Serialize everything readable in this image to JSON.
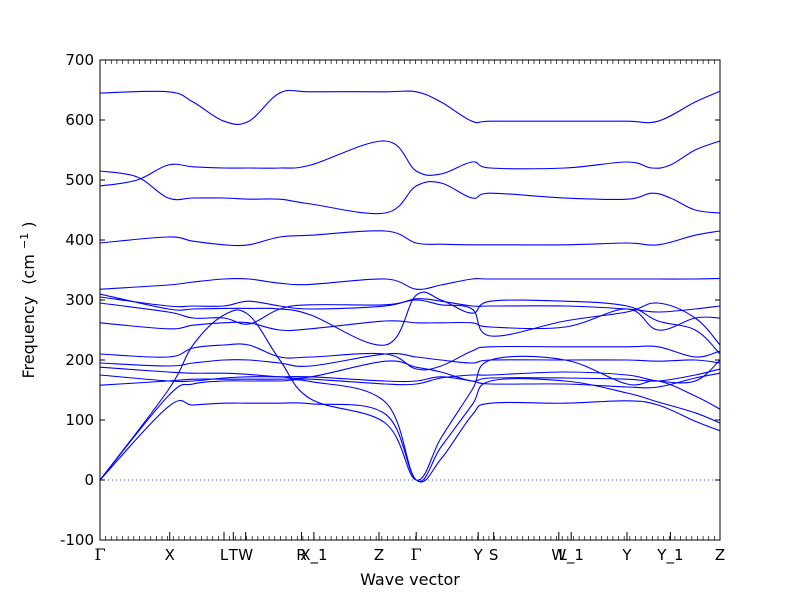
{
  "chart_data": {
    "type": "line",
    "title": "",
    "xlabel": "Wave vector",
    "ylabel": "Frequency",
    "ylabel_unit": "(cm",
    "ylabel_unit_sup": "−1",
    "ylabel_unit_close": ")",
    "ylim": [
      -100,
      700
    ],
    "y_ticks": [
      -100,
      0,
      100,
      200,
      300,
      400,
      500,
      600,
      700
    ],
    "grid": false,
    "line_color": "#0000ff",
    "zero_line_color": "#4444ff",
    "x_high_symmetry": [
      {
        "label": "Γ",
        "x": 0.0
      },
      {
        "label": "X",
        "x": 1.125
      },
      {
        "label": "L",
        "x": 2.0
      },
      {
        "label": "T",
        "x": 2.15
      },
      {
        "label": "W",
        "x": 2.35
      },
      {
        "label": "R",
        "x": 3.25
      },
      {
        "label": "X_1",
        "x": 3.45
      },
      {
        "label": "Z",
        "x": 4.5
      },
      {
        "label": "Γ",
        "x": 5.1
      },
      {
        "label": "Y",
        "x": 6.1
      },
      {
        "label": "S",
        "x": 6.35
      },
      {
        "label": "W",
        "x": 7.4
      },
      {
        "label": "L_1",
        "x": 7.6
      },
      {
        "label": "Y",
        "x": 8.5
      },
      {
        "label": "Y_1",
        "x": 9.2
      },
      {
        "label": "Z",
        "x": 10.0
      }
    ],
    "series": [
      {
        "x": [
          0,
          1.1,
          1.5,
          2,
          2.4,
          2.9,
          3.4,
          4.6,
          5.1,
          5.5,
          6,
          6.3,
          7.5,
          8.5,
          9,
          9.6,
          10
        ],
        "y": [
          0,
          122,
          125,
          128,
          128,
          128,
          127,
          110,
          0,
          35,
          108,
          128,
          128,
          132,
          125,
          98,
          82
        ]
      },
      {
        "x": [
          0,
          1.1,
          1.5,
          2,
          2.4,
          2.9,
          3.4,
          4.6,
          5.1,
          5.5,
          6,
          6.3,
          7.5,
          8.5,
          9,
          9.6,
          10
        ],
        "y": [
          0,
          140,
          160,
          165,
          165,
          165,
          164,
          130,
          0,
          55,
          125,
          165,
          165,
          145,
          130,
          112,
          95
        ]
      },
      {
        "x": [
          0,
          1.1,
          1.5,
          2,
          2.4,
          2.9,
          3.4,
          4.6,
          5.1,
          5.5,
          6,
          6.3,
          7.5,
          8.5,
          9,
          9.6,
          10
        ],
        "y": [
          0,
          150,
          225,
          275,
          275,
          200,
          135,
          95,
          0,
          70,
          150,
          200,
          200,
          160,
          165,
          140,
          118
        ]
      },
      {
        "x": [
          0,
          1.1,
          1.5,
          2,
          2.4,
          2.9,
          3.4,
          4.6,
          5.1,
          5.5,
          6,
          6.3,
          7.5,
          8.5,
          9,
          9.6,
          10
        ],
        "y": [
          158,
          165,
          168,
          168,
          168,
          168,
          168,
          160,
          160,
          170,
          175,
          175,
          180,
          175,
          165,
          165,
          200
        ]
      },
      {
        "x": [
          0,
          1.1,
          1.5,
          2,
          2.4,
          2.9,
          3.4,
          4.6,
          5.1,
          5.5,
          6,
          6.3,
          7.5,
          8.5,
          9,
          9.6,
          10
        ],
        "y": [
          175,
          165,
          165,
          170,
          172,
          172,
          172,
          165,
          165,
          172,
          165,
          160,
          160,
          155,
          155,
          170,
          178
        ]
      },
      {
        "x": [
          0,
          1.1,
          1.5,
          2,
          2.4,
          2.9,
          3.4,
          4.6,
          5.1,
          5.5,
          6,
          6.3,
          7.5,
          8.5,
          9,
          9.6,
          10
        ],
        "y": [
          188,
          180,
          178,
          178,
          176,
          172,
          172,
          198,
          188,
          180,
          165,
          170,
          170,
          168,
          165,
          175,
          185
        ]
      },
      {
        "x": [
          0,
          1.1,
          1.5,
          2,
          2.4,
          2.9,
          3.4,
          4.6,
          5.1,
          5.5,
          6,
          6.3,
          7.5,
          8.5,
          9,
          9.6,
          10
        ],
        "y": [
          195,
          190,
          195,
          200,
          200,
          195,
          190,
          210,
          205,
          200,
          195,
          200,
          200,
          200,
          198,
          200,
          195
        ]
      },
      {
        "x": [
          0,
          1.1,
          1.5,
          2,
          2.4,
          2.9,
          3.4,
          4.6,
          5.1,
          5.5,
          6,
          6.3,
          7.5,
          8.5,
          9,
          9.6,
          10
        ],
        "y": [
          210,
          205,
          220,
          225,
          225,
          205,
          205,
          210,
          185,
          190,
          215,
          222,
          222,
          222,
          222,
          205,
          215
        ]
      },
      {
        "x": [
          0,
          1.1,
          1.5,
          2,
          2.4,
          2.9,
          3.4,
          4.6,
          5.1,
          5.5,
          6,
          6.3,
          7.5,
          8.5,
          9,
          9.6,
          10
        ],
        "y": [
          262,
          252,
          258,
          262,
          262,
          250,
          252,
          265,
          262,
          262,
          262,
          255,
          255,
          285,
          250,
          270,
          270
        ]
      },
      {
        "x": [
          0,
          1.1,
          1.5,
          2,
          2.4,
          2.9,
          3.4,
          4.6,
          5.1,
          5.5,
          6,
          6.3,
          7.5,
          8.5,
          9,
          9.6,
          10
        ],
        "y": [
          295,
          280,
          270,
          270,
          260,
          285,
          292,
          292,
          300,
          292,
          285,
          240,
          265,
          280,
          295,
          270,
          225
        ]
      },
      {
        "x": [
          0,
          1.1,
          1.5,
          2,
          2.4,
          2.9,
          3.4,
          4.6,
          5.1,
          5.5,
          6,
          6.3,
          7.5,
          8.5,
          9,
          9.6,
          10
        ],
        "y": [
          305,
          290,
          290,
          290,
          298,
          290,
          285,
          290,
          302,
          298,
          290,
          290,
          290,
          285,
          280,
          285,
          290
        ]
      },
      {
        "x": [
          0,
          1.1,
          1.5,
          2,
          2.4,
          2.9,
          3.4,
          4.6,
          5.1,
          5.5,
          6,
          6.3,
          7.5,
          8.5,
          9,
          9.6,
          10
        ],
        "y": [
          310,
          285,
          285,
          286,
          286,
          285,
          275,
          225,
          308,
          300,
          278,
          298,
          298,
          290,
          265,
          250,
          210
        ]
      },
      {
        "x": [
          0,
          1.1,
          1.5,
          2,
          2.4,
          2.9,
          3.4,
          4.6,
          5.1,
          5.5,
          6,
          6.3,
          7.5,
          8.5,
          9,
          9.6,
          10
        ],
        "y": [
          318,
          325,
          330,
          335,
          335,
          328,
          326,
          335,
          318,
          325,
          335,
          335,
          335,
          335,
          335,
          335,
          336
        ]
      },
      {
        "x": [
          0,
          1.1,
          1.5,
          2,
          2.4,
          2.9,
          3.4,
          4.6,
          5.1,
          5.5,
          6,
          6.3,
          7.5,
          8.5,
          9,
          9.6,
          10
        ],
        "y": [
          395,
          405,
          398,
          392,
          392,
          405,
          408,
          415,
          395,
          393,
          392,
          392,
          392,
          395,
          392,
          408,
          415
        ]
      },
      {
        "x": [
          0,
          0.6,
          1.1,
          1.5,
          2,
          2.4,
          2.9,
          3.4,
          4.6,
          5.1,
          5.5,
          6,
          6.3,
          7.5,
          8.5,
          8.9,
          9.2,
          9.6,
          10
        ],
        "y": [
          515,
          505,
          470,
          470,
          470,
          468,
          468,
          460,
          445,
          490,
          495,
          470,
          478,
          470,
          468,
          478,
          470,
          450,
          445
        ]
      },
      {
        "x": [
          0,
          0.6,
          1.1,
          1.5,
          2,
          2.4,
          2.9,
          3.4,
          4.6,
          5.1,
          5.5,
          6,
          6.3,
          7.5,
          8.5,
          8.9,
          9.2,
          9.6,
          10
        ],
        "y": [
          490,
          500,
          525,
          522,
          520,
          520,
          520,
          525,
          565,
          515,
          510,
          530,
          520,
          520,
          530,
          520,
          525,
          550,
          565
        ]
      },
      {
        "x": [
          0,
          1.1,
          1.5,
          2,
          2.4,
          2.9,
          3.4,
          4.6,
          5.1,
          5.5,
          6,
          6.3,
          7.5,
          8.5,
          9,
          9.6,
          10
        ],
        "y": [
          645,
          647,
          630,
          598,
          598,
          645,
          647,
          647,
          647,
          630,
          598,
          598,
          598,
          598,
          598,
          630,
          648
        ]
      }
    ]
  }
}
